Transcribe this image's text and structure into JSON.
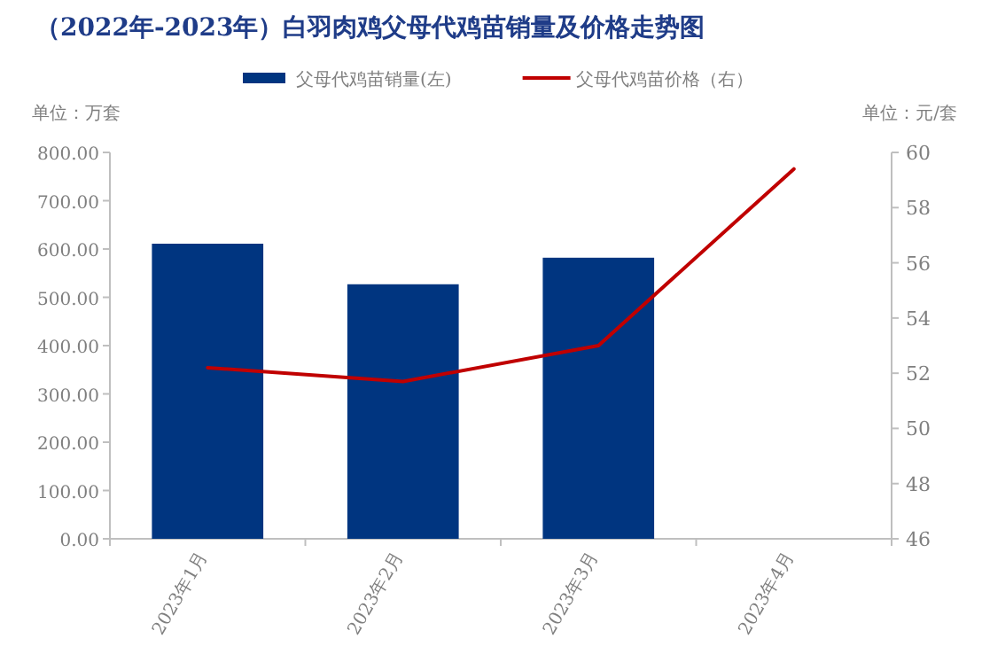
{
  "chart_data": {
    "type": "bar",
    "title": "（2022年-2023年）白羽肉鸡父母代鸡苗销量及价格走势图",
    "ylabel": "单位：万套",
    "y2label": "单位：元/套",
    "categories": [
      "2023年1月",
      "2023年2月",
      "2023年3月",
      "2023年4月"
    ],
    "series": [
      {
        "name": "父母代鸡苗销量(左)",
        "color": "#003580",
        "values": [
          611,
          527,
          582,
          null
        ]
      },
      {
        "name": "父母代鸡苗价格（右）",
        "type": "line",
        "axis": "y2",
        "color": "#c00000",
        "values": [
          52.2,
          51.7,
          53.0,
          59.4
        ]
      }
    ],
    "ylim": [
      0,
      800
    ],
    "yticks": [
      {
        "value": 0,
        "label": "0.00"
      },
      {
        "value": 100,
        "label": "100.00"
      },
      {
        "value": 200,
        "label": "200.00"
      },
      {
        "value": 300,
        "label": "300.00"
      },
      {
        "value": 400,
        "label": "400.00"
      },
      {
        "value": 500,
        "label": "500.00"
      },
      {
        "value": 600,
        "label": "600.00"
      },
      {
        "value": 700,
        "label": "700.00"
      },
      {
        "value": 800,
        "label": "800.00"
      }
    ],
    "y2lim": [
      46,
      60
    ],
    "y2ticks": [
      46,
      48,
      50,
      52,
      54,
      56,
      58,
      60
    ],
    "grid": false,
    "legend": "top",
    "marker": "none",
    "line_style": "solid"
  }
}
